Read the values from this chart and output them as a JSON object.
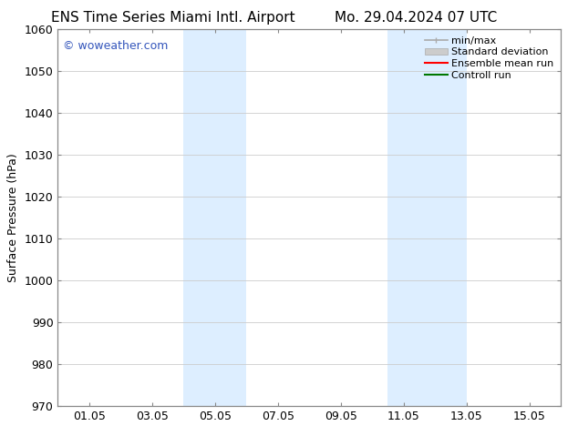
{
  "title_left": "ENS Time Series Miami Intl. Airport",
  "title_right": "Mo. 29.04.2024 07 UTC",
  "ylabel": "Surface Pressure (hPa)",
  "ylim": [
    970,
    1060
  ],
  "yticks": [
    970,
    980,
    990,
    1000,
    1010,
    1020,
    1030,
    1040,
    1050,
    1060
  ],
  "xlim": [
    0,
    16
  ],
  "xtick_positions": [
    1,
    3,
    5,
    7,
    9,
    11,
    13,
    15
  ],
  "xtick_labels": [
    "01.05",
    "03.05",
    "05.05",
    "07.05",
    "09.05",
    "11.05",
    "13.05",
    "15.05"
  ],
  "shaded_bands": [
    {
      "xmin": 4.0,
      "xmax": 6.0
    },
    {
      "xmin": 10.5,
      "xmax": 13.0
    }
  ],
  "shaded_color": "#ddeeff",
  "background_color": "#ffffff",
  "grid_color": "#cccccc",
  "watermark_text": "© woweather.com",
  "watermark_color": "#3355bb",
  "legend_entries": [
    {
      "label": "min/max",
      "color": "#aaaaaa",
      "lw": 1.2,
      "type": "line_with_caps"
    },
    {
      "label": "Standard deviation",
      "color": "#cccccc",
      "lw": 8,
      "type": "patch"
    },
    {
      "label": "Ensemble mean run",
      "color": "#ff0000",
      "lw": 1.5,
      "type": "line"
    },
    {
      "label": "Controll run",
      "color": "#007700",
      "lw": 1.5,
      "type": "line"
    }
  ],
  "title_fontsize": 11,
  "axis_fontsize": 9,
  "tick_fontsize": 9,
  "legend_fontsize": 8,
  "watermark_fontsize": 9
}
